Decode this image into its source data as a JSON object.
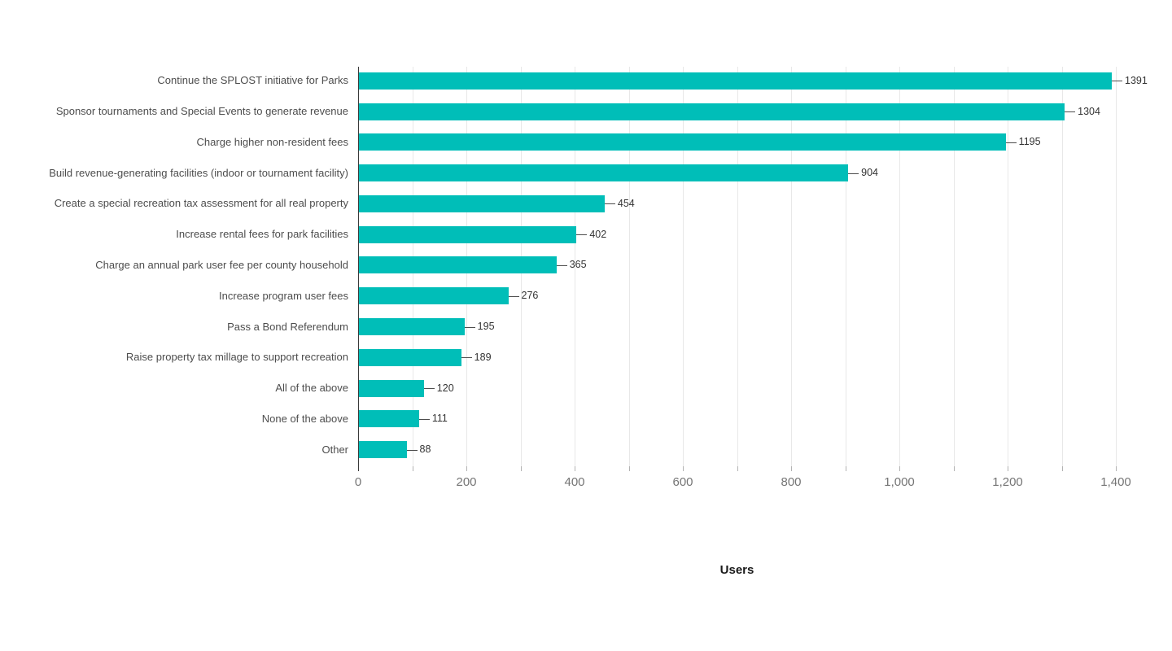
{
  "chart_data": {
    "type": "bar",
    "orientation": "horizontal",
    "title": "",
    "xlabel": "Users",
    "ylabel": "",
    "legend": "none",
    "grid": "vertical gridlines every 100 units",
    "xlim": [
      0,
      1450
    ],
    "categories": [
      "Continue the SPLOST initiative for Parks",
      "Sponsor tournaments and Special Events to generate revenue",
      "Charge higher non-resident fees",
      "Build revenue-generating facilities (indoor or tournament facility)",
      "Create a special recreation tax assessment for all real property",
      "Increase rental fees for park facilities",
      "Charge an annual park user fee per county household",
      "Increase program user fees",
      "Pass a Bond Referendum",
      "Raise property tax millage to support recreation",
      "All of the above",
      "None of the above",
      "Other"
    ],
    "values": [
      1391,
      1304,
      1195,
      904,
      454,
      402,
      365,
      276,
      195,
      189,
      120,
      111,
      88
    ],
    "x_ticks": [
      {
        "value": 0,
        "label": "0"
      },
      {
        "value": 200,
        "label": "200"
      },
      {
        "value": 400,
        "label": "400"
      },
      {
        "value": 600,
        "label": "600"
      },
      {
        "value": 800,
        "label": "800"
      },
      {
        "value": 1000,
        "label": "1,000"
      },
      {
        "value": 1200,
        "label": "1,200"
      },
      {
        "value": 1400,
        "label": "1,400"
      }
    ],
    "x_minor_tick_step": 100,
    "x_max_gridline": 1400,
    "colors": {
      "bar": "#00BEB8",
      "axis_line": "#3a3a3a",
      "gridline": "#e8e8e8",
      "tick": "#b3b3b3",
      "category_text": "#4d4d4d",
      "value_text": "#333333",
      "connector": "#4d4d4d",
      "tick_label_text": "#757575",
      "axis_title_text": "#1a1a1a",
      "background": "#ffffff"
    }
  }
}
